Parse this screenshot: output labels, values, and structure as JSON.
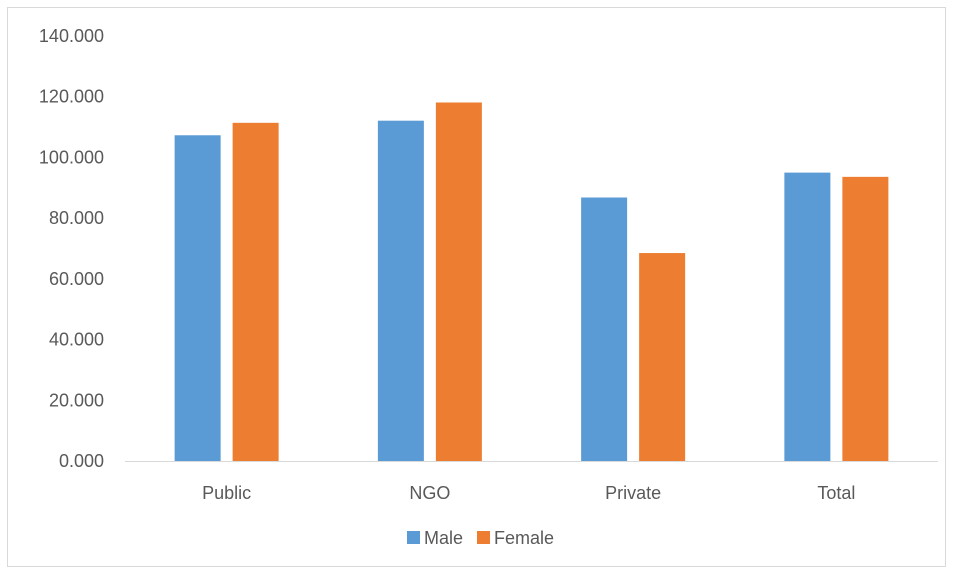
{
  "chart_data": {
    "type": "bar",
    "title": "",
    "xlabel": "",
    "ylabel": "",
    "categories": [
      "Public",
      "NGO",
      "Private",
      "Total"
    ],
    "series": [
      {
        "name": "Male",
        "color": "#5B9BD5",
        "values": [
          107.3,
          112.1,
          86.8,
          95.0
        ]
      },
      {
        "name": "Female",
        "color": "#ED7D31",
        "values": [
          111.4,
          118.1,
          68.5,
          93.6
        ]
      }
    ],
    "ylim": [
      0,
      140
    ],
    "yticks": [
      0,
      20,
      40,
      60,
      80,
      100,
      120,
      140
    ],
    "ytick_labels": [
      "0.000",
      "20.000",
      "40.000",
      "60.000",
      "80.000",
      "100.000",
      "120.000",
      "140.000"
    ],
    "grid": false,
    "legend_position": "bottom"
  }
}
